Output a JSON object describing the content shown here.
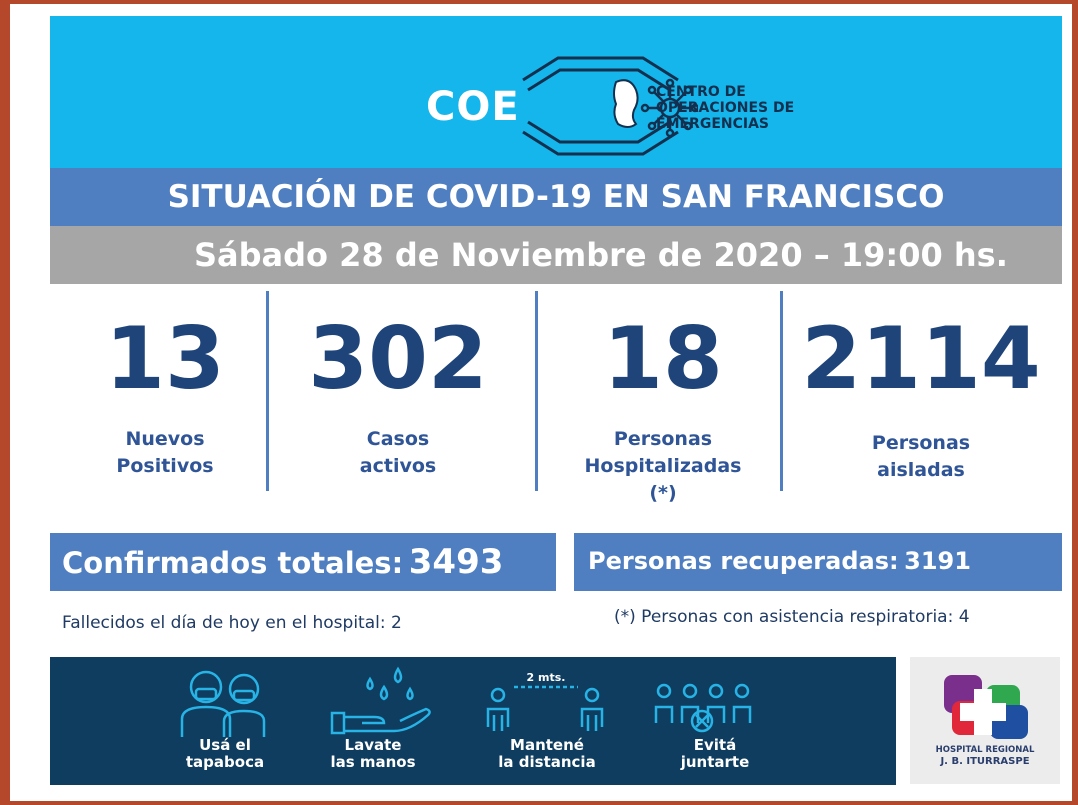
{
  "header": {
    "logo_word": "COE",
    "logo_lines": [
      "CENTRO DE",
      "OPERACIONES DE",
      "EMERGENCIAS"
    ]
  },
  "title": "SITUACIÓN DE COVID-19 EN SAN FRANCISCO",
  "date": "Sábado 28 de Noviembre de 2020 – 19:00 hs.",
  "stats": [
    {
      "value": "13",
      "label_lines": [
        "Nuevos",
        "Positivos"
      ]
    },
    {
      "value": "302",
      "label_lines": [
        "Casos",
        "activos"
      ]
    },
    {
      "value": "18",
      "label_lines": [
        "Personas",
        "Hospitalizadas",
        "(*)"
      ]
    },
    {
      "value": "2114",
      "label_lines": [
        "Personas",
        "aisladas"
      ]
    }
  ],
  "confirmados": {
    "label": "Confirmados totales:",
    "value": "3493"
  },
  "recuperadas": {
    "label": "Personas recuperadas:",
    "value": "3191"
  },
  "notes": {
    "fallecidos": "Fallecidos el día de hoy en el hospital: 2",
    "asistencia": "(*) Personas con asistencia respiratoria: 4"
  },
  "footer": {
    "items": [
      {
        "icon": "face-mask-icon",
        "lines": [
          "Usá el",
          "tapaboca"
        ]
      },
      {
        "icon": "hand-washing-icon",
        "lines": [
          "Lavate",
          "las manos"
        ]
      },
      {
        "icon": "social-distance-icon",
        "lines": [
          "Mantené",
          "la distancia"
        ],
        "distance_label": "2 mts."
      },
      {
        "icon": "no-gathering-icon",
        "lines": [
          "Evitá",
          "juntarte"
        ]
      }
    ]
  },
  "hospital": {
    "lines": [
      "HOSPITAL REGIONAL",
      "J. B. ITURRASPE"
    ]
  },
  "colors": {
    "header_bg": "#15b6eb",
    "title_bar": "#4f7fc0",
    "date_bar": "#a6a6a6",
    "number_blue": "#1f4479",
    "footer_bg": "#0e3d5f",
    "frame": "#b5472b"
  }
}
